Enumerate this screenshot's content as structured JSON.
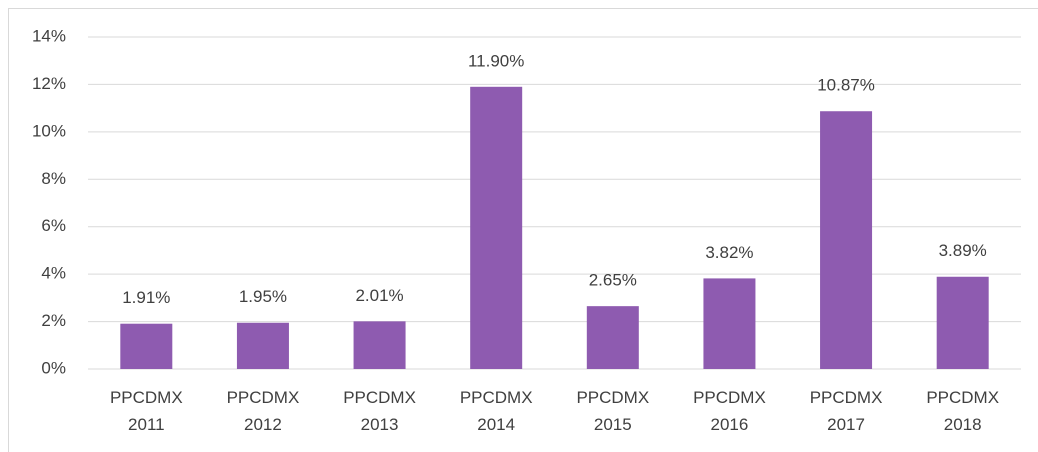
{
  "chart_data": {
    "type": "bar",
    "categories": [
      "PPCDMX 2011",
      "PPCDMX 2012",
      "PPCDMX 2013",
      "PPCDMX 2014",
      "PPCDMX 2015",
      "PPCDMX 2016",
      "PPCDMX 2017",
      "PPCDMX 2018"
    ],
    "values": [
      1.91,
      1.95,
      2.01,
      11.9,
      2.65,
      3.82,
      10.87,
      3.89
    ],
    "value_labels": [
      "1.91%",
      "1.95%",
      "2.01%",
      "11.90%",
      "2.65%",
      "3.82%",
      "10.87%",
      "3.89%"
    ],
    "color": "#8e5bb0",
    "ylim": [
      0,
      14
    ],
    "yticks": [
      {
        "value": 0,
        "label": "0%"
      },
      {
        "value": 2,
        "label": "2%"
      },
      {
        "value": 4,
        "label": "4%"
      },
      {
        "value": 6,
        "label": "6%"
      },
      {
        "value": 8,
        "label": "8%"
      },
      {
        "value": 10,
        "label": "10%"
      },
      {
        "value": 12,
        "label": "12%"
      },
      {
        "value": 14,
        "label": "14%"
      }
    ],
    "grid": true
  }
}
